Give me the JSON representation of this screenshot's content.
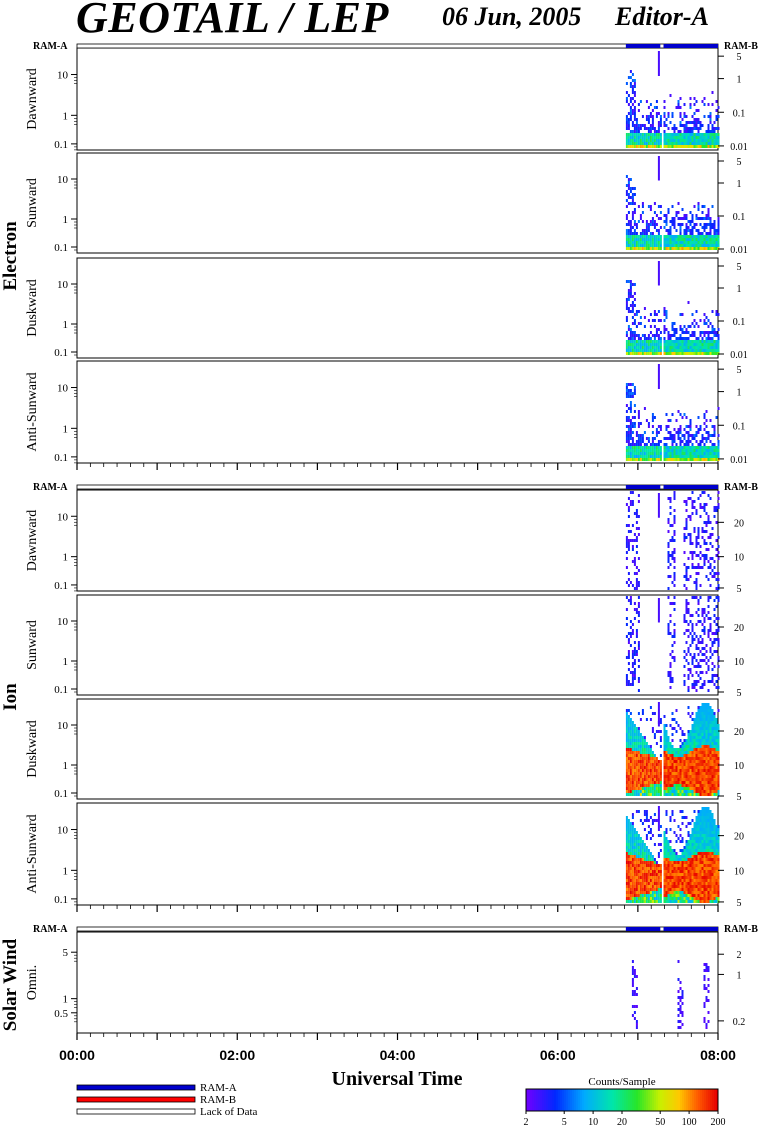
{
  "header": {
    "title": "GEOTAIL / LEP",
    "date": "06 Jun, 2005",
    "editor": "Editor-A"
  },
  "colors": {
    "ram_a": "#0000cc",
    "ram_b": "#ff0000",
    "lack_of_data": "#ffffff"
  },
  "chart_data": {
    "type": "heatmap",
    "time_range": [
      "00:00",
      "08:00"
    ],
    "time_unit": "hours",
    "xlabel": "Universal Time",
    "x_ticks": [
      "00:00",
      "02:00",
      "04:00",
      "06:00",
      "08:00"
    ],
    "ram_bar_labels": {
      "left": "RAM-A",
      "right": "RAM-B"
    },
    "ram_coverage": [
      {
        "start_h": 6.85,
        "end_h": 7.28,
        "mode": "RAM-A"
      },
      {
        "start_h": 7.32,
        "end_h": 8.0,
        "mode": "RAM-A"
      }
    ],
    "groups": [
      {
        "name": "Electron",
        "left_ticks": [
          "10",
          "1",
          "0.1"
        ],
        "right_ticks": [
          "5",
          "1",
          "0.1",
          "0.01"
        ],
        "panels": [
          {
            "label": "Dawnward",
            "profile": "electron"
          },
          {
            "label": "Sunward",
            "profile": "electron"
          },
          {
            "label": "Duskward",
            "profile": "electron"
          },
          {
            "label": "Anti-Sunward",
            "profile": "electron"
          }
        ]
      },
      {
        "name": "Ion",
        "left_ticks": [
          "10",
          "1",
          "0.1"
        ],
        "right_ticks": [
          "20",
          "10",
          "5"
        ],
        "panels": [
          {
            "label": "Dawnward",
            "profile": "ion_sparse"
          },
          {
            "label": "Sunward",
            "profile": "ion_sparse"
          },
          {
            "label": "Duskward",
            "profile": "ion_dense"
          },
          {
            "label": "Anti-Sunward",
            "profile": "ion_dense"
          }
        ]
      },
      {
        "name": "Solar Wind",
        "left_ticks": [
          "5",
          "1",
          "0.5"
        ],
        "right_ticks": [
          "2",
          "1",
          "0.2"
        ],
        "panels": [
          {
            "label": "Omni.",
            "profile": "solar"
          }
        ]
      }
    ],
    "legend": {
      "entries": [
        "RAM-A",
        "RAM-B",
        "Lack of Data"
      ]
    },
    "colorbar": {
      "title": "Counts/Sample",
      "ticks": [
        "2",
        "5",
        "10",
        "20",
        "50",
        "100",
        "200"
      ],
      "scale": "log",
      "range": [
        2,
        200
      ]
    }
  }
}
